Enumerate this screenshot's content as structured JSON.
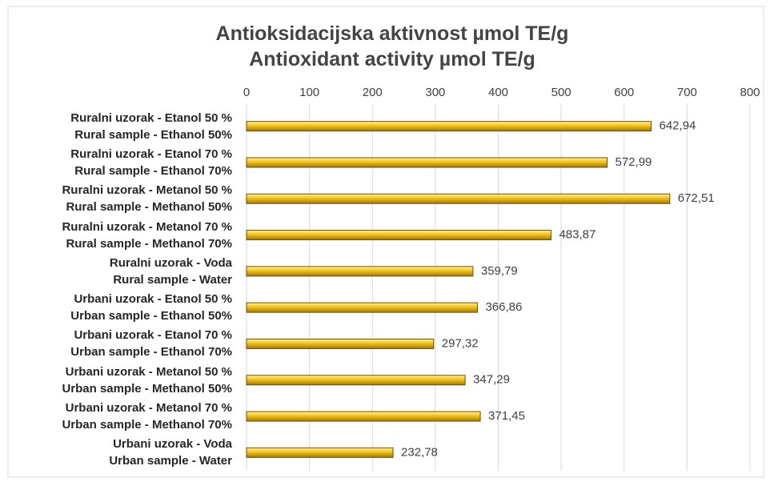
{
  "chart_data": {
    "type": "bar",
    "orientation": "horizontal",
    "title": "Antioksidacijska aktivnost µmol TE/g",
    "subtitle": "Antioxidant activity µmol TE/g",
    "categories": [
      "Ruralni uzorak - Etanol 50 %\nRural sample - Ethanol 50%",
      "Ruralni uzorak - Etanol 70 %\nRural sample - Ethanol 70%",
      "Ruralni uzorak - Metanol 50 %\nRural sample - Methanol 50%",
      "Ruralni uzorak - Metanol 70 %\nRural sample - Methanol 70%",
      "Ruralni uzorak - Voda\nRural sample - Water",
      "Urbani uzorak - Etanol 50 %\nUrban sample - Ethanol 50%",
      "Urbani uzorak - Etanol 70 %\nUrban sample - Ethanol 70%",
      "Urbani uzorak - Metanol 50 %\nUrban sample - Methanol  50%",
      "Urbani uzorak - Metanol 70 %\nUrban sample - Methanol 70%",
      "Urbani uzorak - Voda\nUrban sample - Water"
    ],
    "values": [
      642.94,
      572.99,
      672.51,
      483.87,
      359.79,
      366.86,
      297.32,
      347.29,
      371.45,
      232.78
    ],
    "value_labels": [
      "642,94",
      "572,99",
      "672,51",
      "483,87",
      "359,79",
      "366,86",
      "297,32",
      "347,29",
      "371,45",
      "232,78"
    ],
    "color": "#f2c21b",
    "xlim": [
      0,
      800
    ],
    "xticks": [
      0,
      100,
      200,
      300,
      400,
      500,
      600,
      700,
      800
    ],
    "grid": true
  }
}
